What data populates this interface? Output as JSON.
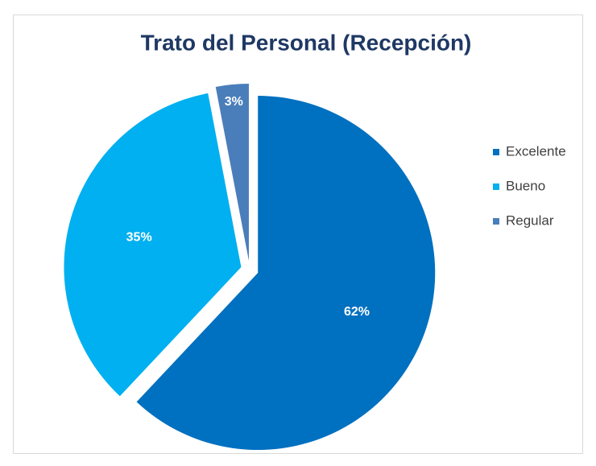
{
  "chart_data": {
    "type": "pie",
    "title": "Trato del Personal (Recepción)",
    "categories": [
      "Excelente",
      "Bueno",
      "Regular"
    ],
    "values": [
      62,
      35,
      3
    ],
    "value_labels": [
      "62%",
      "35%",
      "3%"
    ],
    "colors": [
      "#0070c0",
      "#00b0f0",
      "#4a7ebb"
    ],
    "legend": "right"
  }
}
